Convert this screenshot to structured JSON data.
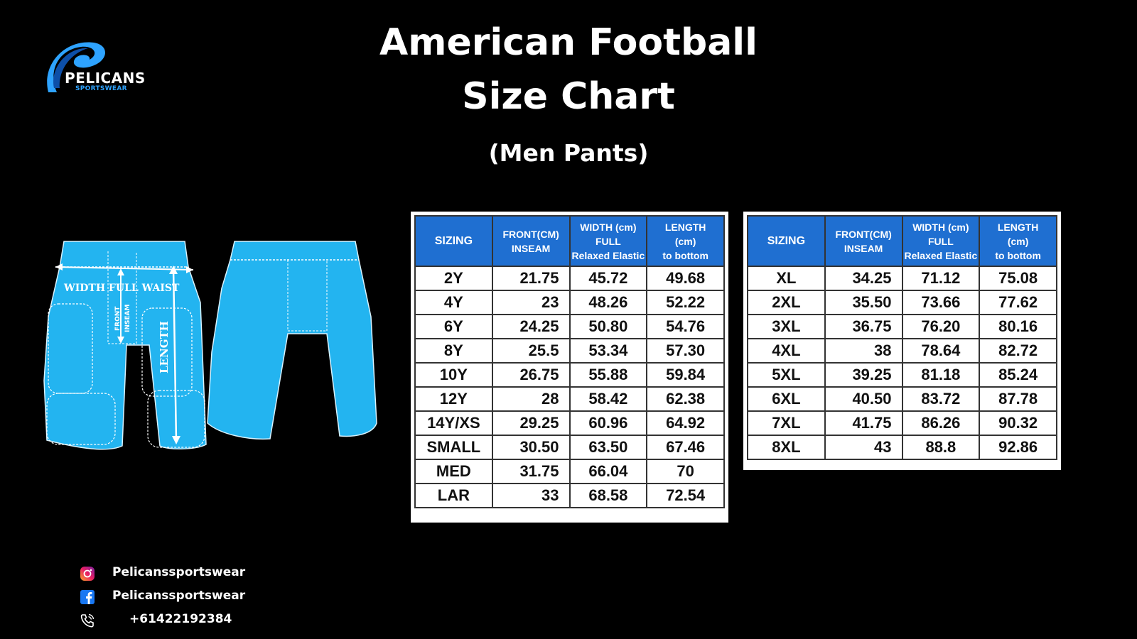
{
  "brand": {
    "name": "PELICANS",
    "sub": "SPORTSWEAR"
  },
  "title": {
    "line1": "American Football",
    "line2": "Size Chart",
    "subtitle": "(Men Pants)"
  },
  "diagram": {
    "waist_label": "WIDTH FULL WAIST",
    "front_label": "FRONT",
    "inseam_label": "INSEAM",
    "length_label": "LENGTH",
    "pant_color": "#23b4f0"
  },
  "table_headers": {
    "sizing": "SIZING",
    "front_1": "FRONT(CM)",
    "front_2": "INSEAM",
    "width_1": "WIDTH (cm)",
    "width_2": "FULL",
    "width_3": "Relaxed Elastic",
    "length_1": "LENGTH",
    "length_2": "(cm)",
    "length_3": "to bottom"
  },
  "table1_rows": [
    {
      "size": "2Y",
      "front": "21.75",
      "width": "45.72",
      "length": "49.68"
    },
    {
      "size": "4Y",
      "front": "23",
      "width": "48.26",
      "length": "52.22"
    },
    {
      "size": "6Y",
      "front": "24.25",
      "width": "50.80",
      "length": "54.76"
    },
    {
      "size": "8Y",
      "front": "25.5",
      "width": "53.34",
      "length": "57.30"
    },
    {
      "size": "10Y",
      "front": "26.75",
      "width": "55.88",
      "length": "59.84"
    },
    {
      "size": "12Y",
      "front": "28",
      "width": "58.42",
      "length": "62.38"
    },
    {
      "size": "14Y/XS",
      "front": "29.25",
      "width": "60.96",
      "length": "64.92"
    },
    {
      "size": "SMALL",
      "front": "30.50",
      "width": "63.50",
      "length": "67.46"
    },
    {
      "size": "MED",
      "front": "31.75",
      "width": "66.04",
      "length": "70"
    },
    {
      "size": "LAR",
      "front": "33",
      "width": "68.58",
      "length": "72.54"
    }
  ],
  "table2_rows": [
    {
      "size": "XL",
      "front": "34.25",
      "width": "71.12",
      "length": "75.08"
    },
    {
      "size": "2XL",
      "front": "35.50",
      "width": "73.66",
      "length": "77.62"
    },
    {
      "size": "3XL",
      "front": "36.75",
      "width": "76.20",
      "length": "80.16"
    },
    {
      "size": "4XL",
      "front": "38",
      "width": "78.64",
      "length": "82.72"
    },
    {
      "size": "5XL",
      "front": "39.25",
      "width": "81.18",
      "length": "85.24"
    },
    {
      "size": "6XL",
      "front": "40.50",
      "width": "83.72",
      "length": "87.78"
    },
    {
      "size": "7XL",
      "front": "41.75",
      "width": "86.26",
      "length": "90.32"
    },
    {
      "size": "8XL",
      "front": "43",
      "width": "88.8",
      "length": "92.86"
    }
  ],
  "colors": {
    "header_blue": "#1f6fd1",
    "accent_blue": "#2ea3ff",
    "background": "#000000"
  },
  "contact": {
    "instagram": "Pelicanssportswear",
    "facebook": "Pelicanssportswear",
    "phone": "+61422192384",
    "instagram_icon": "instagram-icon",
    "facebook_icon": "facebook-icon",
    "phone_icon": "phone-icon"
  }
}
